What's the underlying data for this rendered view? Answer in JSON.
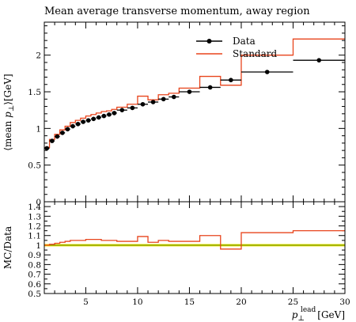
{
  "chart_data": {
    "type": "line",
    "title": "Mean average transverse momentum, away region",
    "xlabel": "p⊥lead [GeV]",
    "xlabel_parts": {
      "symbol": "p",
      "sub": "⊥",
      "sup": "lead",
      "unit": "[GeV]"
    },
    "ylabel": "⟨mean p⊥⟩[GeV]",
    "ylabel_parts": {
      "prefix": "⟨mean ",
      "symbol": "p",
      "sub": "⊥",
      "suffix": "⟩[GeV]"
    },
    "ratio_ylabel": "MC/Data",
    "xlim": [
      1,
      30
    ],
    "ylim": [
      0,
      2.45
    ],
    "ratio_ylim": [
      0.5,
      1.45
    ],
    "x_ticks": [
      5,
      10,
      15,
      20,
      25,
      30
    ],
    "y_ticks": [
      0,
      0.5,
      1,
      1.5,
      2
    ],
    "ratio_ticks": [
      0.5,
      0.6,
      0.7,
      0.8,
      0.9,
      1,
      1.1,
      1.2,
      1.3,
      1.4
    ],
    "ratio_tick_labels": [
      "0.5",
      "0.6",
      "0.7",
      "0.8",
      "0.9",
      "1",
      "1.1",
      "1.2",
      "1.3",
      "1.4"
    ],
    "legend": {
      "position": "top-right",
      "entries": [
        "Data",
        "Standard"
      ]
    },
    "colors": {
      "data": "#000000",
      "standard": "#e8441c",
      "band": "#f2ea00",
      "unity": "#6a8c00"
    },
    "series": [
      {
        "name": "Data",
        "style": "points_with_xerr",
        "points": [
          {
            "x": 1.25,
            "lo": 1.0,
            "hi": 1.5,
            "y": 0.73
          },
          {
            "x": 1.75,
            "lo": 1.5,
            "hi": 2.0,
            "y": 0.83
          },
          {
            "x": 2.25,
            "lo": 2.0,
            "hi": 2.5,
            "y": 0.89
          },
          {
            "x": 2.75,
            "lo": 2.5,
            "hi": 3.0,
            "y": 0.94
          },
          {
            "x": 3.25,
            "lo": 3.0,
            "hi": 3.5,
            "y": 0.99
          },
          {
            "x": 3.75,
            "lo": 3.5,
            "hi": 4.0,
            "y": 1.03
          },
          {
            "x": 4.25,
            "lo": 4.0,
            "hi": 4.5,
            "y": 1.06
          },
          {
            "x": 4.75,
            "lo": 4.5,
            "hi": 5.0,
            "y": 1.09
          },
          {
            "x": 5.25,
            "lo": 5.0,
            "hi": 5.5,
            "y": 1.11
          },
          {
            "x": 5.75,
            "lo": 5.5,
            "hi": 6.0,
            "y": 1.13
          },
          {
            "x": 6.25,
            "lo": 6.0,
            "hi": 6.5,
            "y": 1.15
          },
          {
            "x": 6.75,
            "lo": 6.5,
            "hi": 7.0,
            "y": 1.17
          },
          {
            "x": 7.25,
            "lo": 7.0,
            "hi": 7.5,
            "y": 1.19
          },
          {
            "x": 7.75,
            "lo": 7.5,
            "hi": 8.0,
            "y": 1.21
          },
          {
            "x": 8.5,
            "lo": 8.0,
            "hi": 9.0,
            "y": 1.25
          },
          {
            "x": 9.5,
            "lo": 9.0,
            "hi": 10.0,
            "y": 1.28
          },
          {
            "x": 10.5,
            "lo": 10.0,
            "hi": 11.0,
            "y": 1.33
          },
          {
            "x": 11.5,
            "lo": 11.0,
            "hi": 12.0,
            "y": 1.36
          },
          {
            "x": 12.5,
            "lo": 12.0,
            "hi": 13.0,
            "y": 1.4
          },
          {
            "x": 13.5,
            "lo": 13.0,
            "hi": 14.0,
            "y": 1.43
          },
          {
            "x": 15.0,
            "lo": 14.0,
            "hi": 16.0,
            "y": 1.5
          },
          {
            "x": 17.0,
            "lo": 16.0,
            "hi": 18.0,
            "y": 1.56
          },
          {
            "x": 19.0,
            "lo": 18.0,
            "hi": 20.0,
            "y": 1.66
          },
          {
            "x": 22.5,
            "lo": 20.0,
            "hi": 25.0,
            "y": 1.77
          },
          {
            "x": 27.5,
            "lo": 25.0,
            "hi": 30.0,
            "y": 1.93
          }
        ]
      },
      {
        "name": "Standard",
        "style": "step_histogram",
        "bins": [
          {
            "lo": 1.0,
            "hi": 1.5,
            "y": 0.74
          },
          {
            "lo": 1.5,
            "hi": 2.0,
            "y": 0.85
          },
          {
            "lo": 2.0,
            "hi": 2.5,
            "y": 0.92
          },
          {
            "lo": 2.5,
            "hi": 3.0,
            "y": 0.98
          },
          {
            "lo": 3.0,
            "hi": 3.5,
            "y": 1.03
          },
          {
            "lo": 3.5,
            "hi": 4.0,
            "y": 1.08
          },
          {
            "lo": 4.0,
            "hi": 4.5,
            "y": 1.11
          },
          {
            "lo": 4.5,
            "hi": 5.0,
            "y": 1.14
          },
          {
            "lo": 5.0,
            "hi": 5.5,
            "y": 1.17
          },
          {
            "lo": 5.5,
            "hi": 6.0,
            "y": 1.19
          },
          {
            "lo": 6.0,
            "hi": 6.5,
            "y": 1.21
          },
          {
            "lo": 6.5,
            "hi": 7.0,
            "y": 1.23
          },
          {
            "lo": 7.0,
            "hi": 7.5,
            "y": 1.24
          },
          {
            "lo": 7.5,
            "hi": 8.0,
            "y": 1.26
          },
          {
            "lo": 8.0,
            "hi": 9.0,
            "y": 1.29
          },
          {
            "lo": 9.0,
            "hi": 10.0,
            "y": 1.33
          },
          {
            "lo": 10.0,
            "hi": 11.0,
            "y": 1.44
          },
          {
            "lo": 11.0,
            "hi": 12.0,
            "y": 1.39
          },
          {
            "lo": 12.0,
            "hi": 13.0,
            "y": 1.46
          },
          {
            "lo": 13.0,
            "hi": 14.0,
            "y": 1.48
          },
          {
            "lo": 14.0,
            "hi": 16.0,
            "y": 1.55
          },
          {
            "lo": 16.0,
            "hi": 18.0,
            "y": 1.71
          },
          {
            "lo": 18.0,
            "hi": 20.0,
            "y": 1.59
          },
          {
            "lo": 20.0,
            "hi": 25.0,
            "y": 2.0
          },
          {
            "lo": 25.0,
            "hi": 30.0,
            "y": 2.22
          }
        ]
      }
    ],
    "ratio": {
      "name": "Standard",
      "bins": [
        {
          "lo": 1.0,
          "hi": 1.5,
          "y": 1.0
        },
        {
          "lo": 1.5,
          "hi": 2.0,
          "y": 1.01
        },
        {
          "lo": 2.0,
          "hi": 2.5,
          "y": 1.02
        },
        {
          "lo": 2.5,
          "hi": 3.0,
          "y": 1.03
        },
        {
          "lo": 3.0,
          "hi": 3.5,
          "y": 1.04
        },
        {
          "lo": 3.5,
          "hi": 4.0,
          "y": 1.05
        },
        {
          "lo": 4.0,
          "hi": 4.5,
          "y": 1.05
        },
        {
          "lo": 4.5,
          "hi": 5.0,
          "y": 1.05
        },
        {
          "lo": 5.0,
          "hi": 5.5,
          "y": 1.06
        },
        {
          "lo": 5.5,
          "hi": 6.0,
          "y": 1.06
        },
        {
          "lo": 6.0,
          "hi": 6.5,
          "y": 1.06
        },
        {
          "lo": 6.5,
          "hi": 7.0,
          "y": 1.05
        },
        {
          "lo": 7.0,
          "hi": 7.5,
          "y": 1.05
        },
        {
          "lo": 7.5,
          "hi": 8.0,
          "y": 1.05
        },
        {
          "lo": 8.0,
          "hi": 9.0,
          "y": 1.04
        },
        {
          "lo": 9.0,
          "hi": 10.0,
          "y": 1.04
        },
        {
          "lo": 10.0,
          "hi": 11.0,
          "y": 1.09
        },
        {
          "lo": 11.0,
          "hi": 12.0,
          "y": 1.03
        },
        {
          "lo": 12.0,
          "hi": 13.0,
          "y": 1.05
        },
        {
          "lo": 13.0,
          "hi": 14.0,
          "y": 1.04
        },
        {
          "lo": 14.0,
          "hi": 16.0,
          "y": 1.04
        },
        {
          "lo": 16.0,
          "hi": 18.0,
          "y": 1.1
        },
        {
          "lo": 18.0,
          "hi": 20.0,
          "y": 0.96
        },
        {
          "lo": 20.0,
          "hi": 25.0,
          "y": 1.13
        },
        {
          "lo": 25.0,
          "hi": 30.0,
          "y": 1.15
        }
      ]
    }
  }
}
